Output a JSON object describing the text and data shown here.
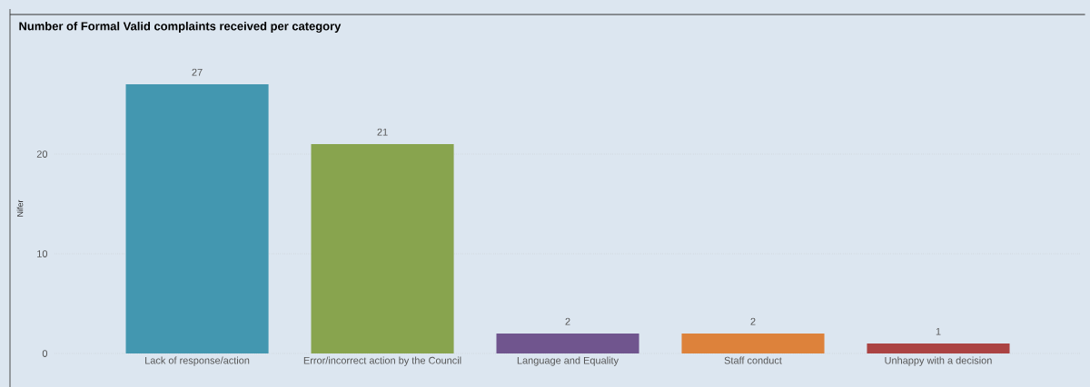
{
  "chart_data": {
    "type": "bar",
    "title": "Number of Formal Valid complaints received per category",
    "ylabel": "Nifer",
    "categories": [
      "Lack of response/action",
      "Error/incorrect action by the Council",
      "Language and Equality",
      "Staff conduct",
      "Unhappy with a decision"
    ],
    "values": [
      27,
      21,
      2,
      2,
      1
    ],
    "colors": [
      "#4397b0",
      "#88a44e",
      "#70558e",
      "#dd823b",
      "#ab4343"
    ],
    "ylim": [
      0,
      34
    ],
    "yticks": [
      0,
      10,
      20
    ],
    "grid": "y",
    "data_labels": true
  }
}
